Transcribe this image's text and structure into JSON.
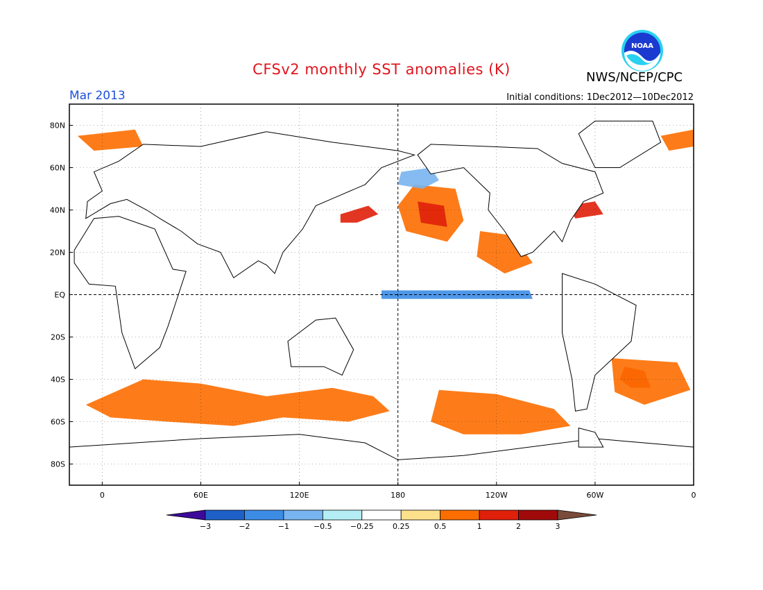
{
  "title": "CFSv2 monthly SST anomalies (K)",
  "organization": "NWS/NCEP/CPC",
  "logo_text": "NOAA",
  "period": "Mar 2013",
  "initial_conditions": "Initial conditions: 1Dec2012—10Dec2012",
  "map": {
    "projection": "equirectangular",
    "lon_range": [
      -20,
      360
    ],
    "lat_range": [
      -90,
      90
    ],
    "lat_ticks": [
      "80N",
      "60N",
      "40N",
      "20N",
      "EQ",
      "20S",
      "40S",
      "60S",
      "80S"
    ],
    "lon_ticks": [
      "0",
      "60E",
      "120E",
      "180",
      "120W",
      "60W",
      "0"
    ],
    "reference_lines": [
      "equator",
      "180"
    ]
  },
  "colorbar": {
    "labels": [
      "−3",
      "−2",
      "−1",
      "−0.5",
      "−0.25",
      "0.25",
      "0.5",
      "1",
      "2",
      "3"
    ],
    "colors": [
      "#3c0a9a",
      "#1e60c8",
      "#3c8ce6",
      "#78b4f0",
      "#b4eef4",
      "#ffffff",
      "#fde08c",
      "#fd6e00",
      "#e0200a",
      "#a00a0a",
      "#7a4b3a"
    ]
  },
  "anomaly_regions": [
    {
      "name": "north-pacific-warm",
      "color": "#fd6e00"
    },
    {
      "name": "north-pacific-core",
      "color": "#e0200a"
    },
    {
      "name": "equatorial-pacific-cool",
      "color": "#3c8ce6"
    },
    {
      "name": "southern-ocean-warm",
      "color": "#fd6e00"
    },
    {
      "name": "south-atlantic-warm",
      "color": "#e0200a"
    },
    {
      "name": "kuroshio-warm",
      "color": "#e0200a"
    },
    {
      "name": "gulf-stream-warm",
      "color": "#e0200a"
    },
    {
      "name": "bering-cool",
      "color": "#78b4f0"
    }
  ]
}
